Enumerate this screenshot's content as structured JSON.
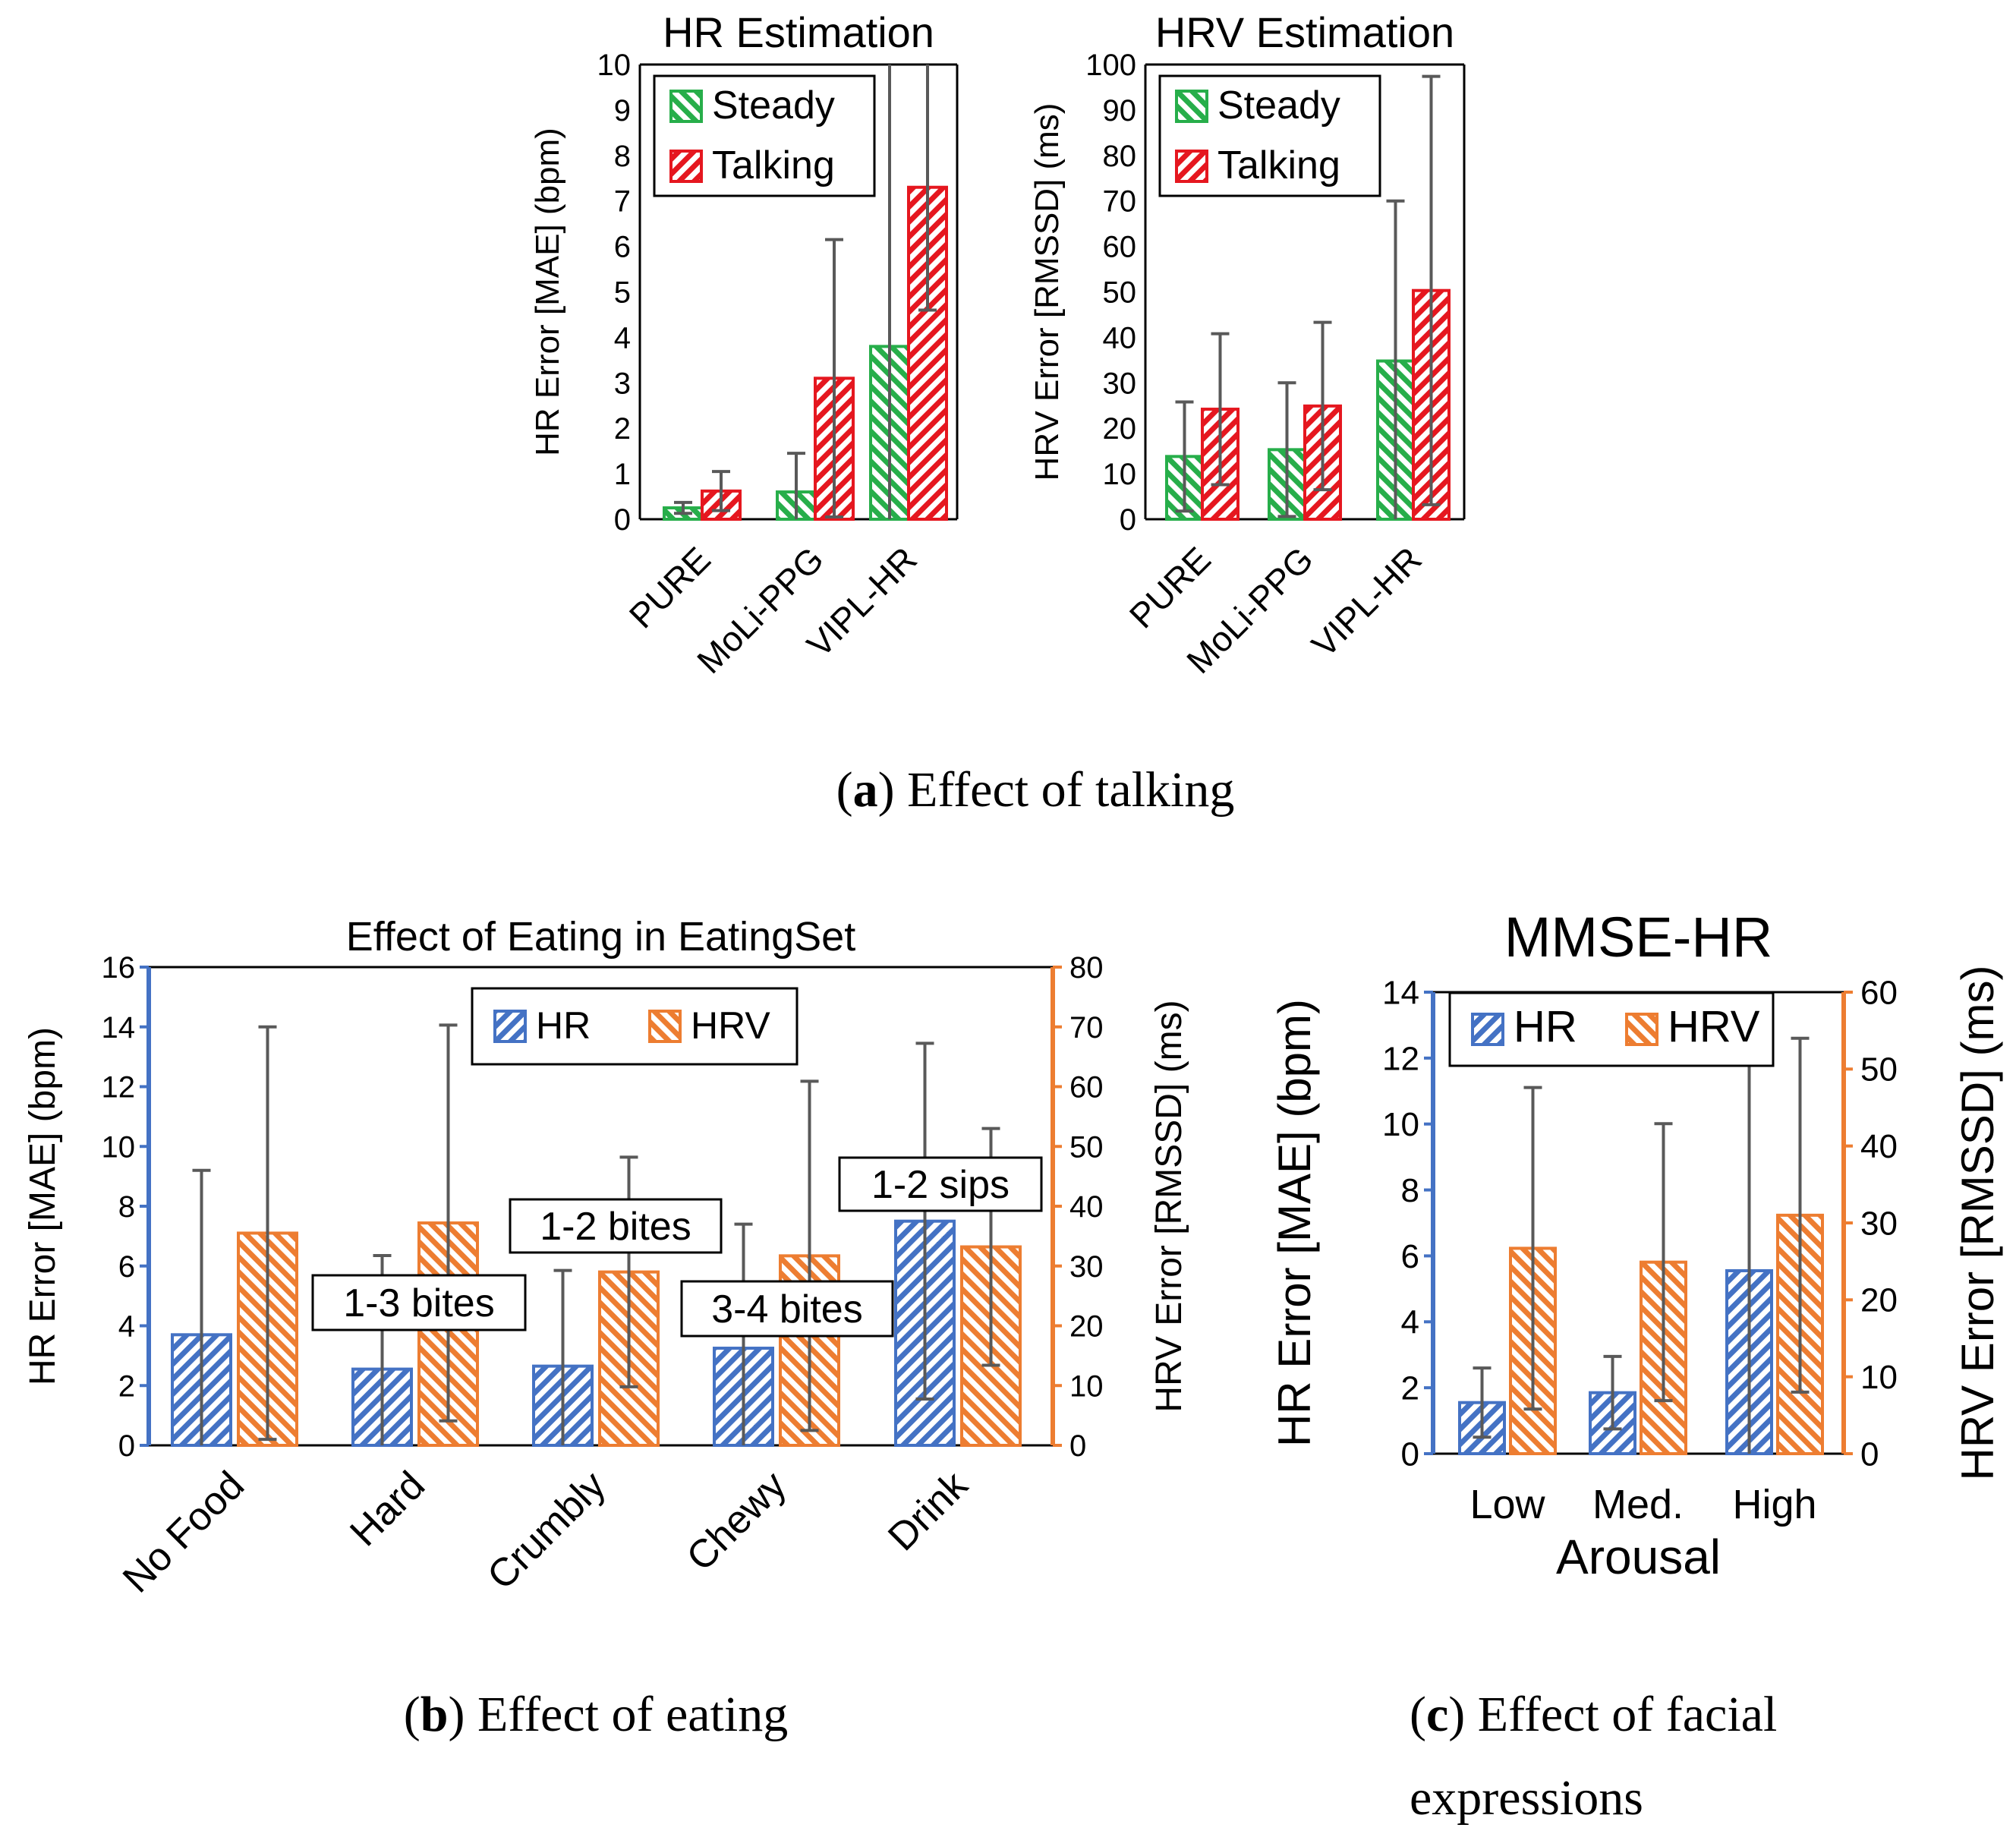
{
  "captions": {
    "a_letter": "a",
    "a_text": "Effect of talking",
    "b_letter": "b",
    "b_text": "Effect of eating",
    "c_letter": "c",
    "c_text_line1": "Effect of facial",
    "c_text_line2": "expressions"
  },
  "colors": {
    "steady": "#27ae4a",
    "talking": "#e5171f",
    "hr": "#4472c4",
    "hrv": "#ed7d31",
    "axis_blue": "#4472c4",
    "axis_orange": "#ed7d31",
    "error_bar": "#595959",
    "text": "#000000"
  },
  "chart_data": [
    {
      "id": "hr_est",
      "type": "bar",
      "title": "HR Estimation",
      "xlabel": "",
      "ylabel": "HR Error [MAE] (bpm)",
      "ylim": [
        0,
        10
      ],
      "yticks": [
        "0",
        "1",
        "2",
        "3",
        "4",
        "5",
        "6",
        "7",
        "8",
        "9",
        "10"
      ],
      "categories": [
        "PURE",
        "MoLi-PPG",
        "VIPL-HR"
      ],
      "legend": [
        "Steady",
        "Talking"
      ],
      "legend_position": "top-left",
      "series": [
        {
          "name": "Steady",
          "values": [
            0.25,
            0.6,
            3.8
          ],
          "errors": [
            0.12,
            0.85,
            6.3
          ]
        },
        {
          "name": "Talking",
          "values": [
            0.62,
            3.1,
            7.3
          ],
          "errors": [
            0.43,
            3.05,
            2.7
          ]
        }
      ]
    },
    {
      "id": "hrv_est",
      "type": "bar",
      "title": "HRV Estimation",
      "xlabel": "",
      "ylabel": "HRV Error [RMSSD] (ms)",
      "ylim": [
        0,
        100
      ],
      "yticks": [
        "0",
        "10",
        "20",
        "30",
        "40",
        "50",
        "60",
        "70",
        "80",
        "90",
        "100"
      ],
      "categories": [
        "PURE",
        "MoLi-PPG",
        "VIPL-HR"
      ],
      "legend": [
        "Steady",
        "Talking"
      ],
      "legend_position": "top-left",
      "series": [
        {
          "name": "Steady",
          "values": [
            13.8,
            15.3,
            34.8
          ],
          "errors": [
            12,
            14.7,
            35.2
          ]
        },
        {
          "name": "Talking",
          "values": [
            24.2,
            24.9,
            50.3
          ],
          "errors": [
            16.6,
            18.4,
            47.1
          ]
        }
      ]
    },
    {
      "id": "eating",
      "type": "bar",
      "title": "Effect of Eating in EatingSet",
      "xlabel": "",
      "ylabel": "HR Error [MAE] (bpm)",
      "ylabel_right": "HRV Error [RMSSD] (ms)",
      "ylim": [
        0,
        16
      ],
      "ylim_right": [
        0,
        80
      ],
      "yticks": [
        "0",
        "2",
        "4",
        "6",
        "8",
        "10",
        "12",
        "14",
        "16"
      ],
      "yticks_right": [
        "0",
        "10",
        "20",
        "30",
        "40",
        "50",
        "60",
        "70",
        "80"
      ],
      "categories": [
        "No Food",
        "Hard",
        "Crumbly",
        "Chewy",
        "Drink"
      ],
      "legend": [
        "HR",
        "HRV"
      ],
      "legend_position": "top-center",
      "annotations": [
        "1-3 bites",
        "1-2 bites",
        "3-4 bites",
        "1-2 sips"
      ],
      "series": [
        {
          "name": "HR",
          "axis": "left",
          "values": [
            3.7,
            2.55,
            2.65,
            3.25,
            7.5
          ],
          "errors": [
            5.5,
            3.8,
            3.2,
            4.15,
            5.95
          ]
        },
        {
          "name": "HRV",
          "axis": "right",
          "values": [
            35.5,
            37.2,
            29.0,
            31.7,
            33.2
          ],
          "errors": [
            34.5,
            33.1,
            19.2,
            29.2,
            19.8
          ]
        }
      ]
    },
    {
      "id": "mmse",
      "type": "bar",
      "title": "MMSE-HR",
      "xlabel": "Arousal",
      "ylabel": "HR Error [MAE] (bpm)",
      "ylabel_right": "HRV Error [RMSSD] (ms)",
      "ylim": [
        0,
        14
      ],
      "ylim_right": [
        0,
        60
      ],
      "yticks": [
        "0",
        "2",
        "4",
        "6",
        "8",
        "10",
        "12",
        "14"
      ],
      "yticks_right": [
        "0",
        "10",
        "20",
        "30",
        "40",
        "50",
        "60"
      ],
      "categories": [
        "Low",
        "Med.",
        "High"
      ],
      "legend": [
        "HR",
        "HRV"
      ],
      "legend_position": "top",
      "series": [
        {
          "name": "HR",
          "axis": "left",
          "values": [
            1.55,
            1.85,
            5.55
          ],
          "errors": [
            1.05,
            1.1,
            6.25
          ]
        },
        {
          "name": "HRV",
          "axis": "right",
          "values": [
            26.7,
            24.9,
            31.0
          ],
          "errors": [
            20.9,
            18.0,
            23.0
          ]
        }
      ]
    }
  ]
}
